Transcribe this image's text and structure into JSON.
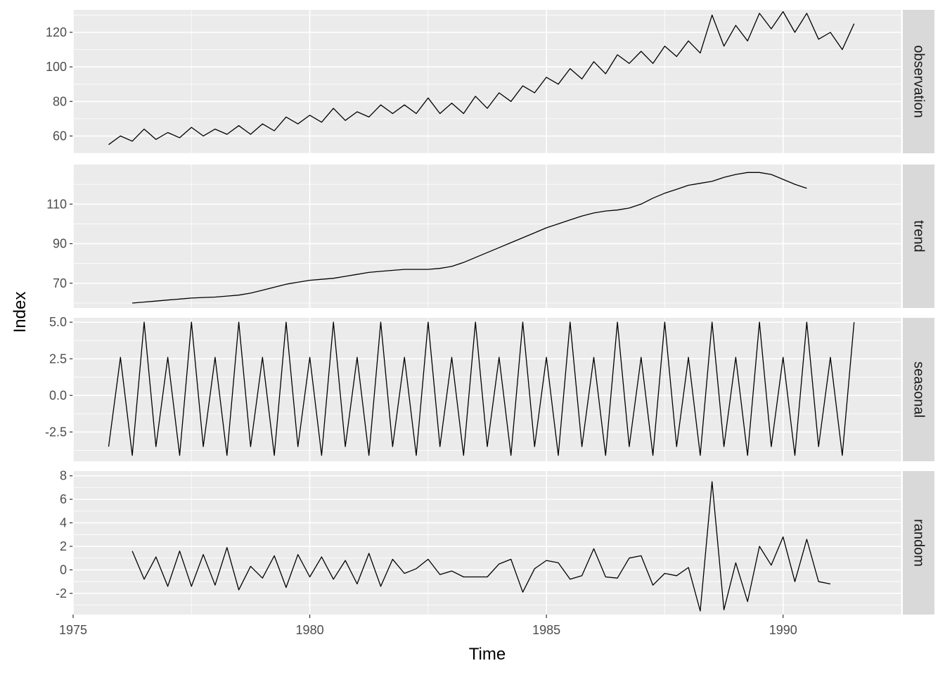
{
  "chart_data": {
    "type": "line",
    "title": "",
    "xlabel": "Time",
    "ylabel": "Index",
    "x_ticks": [
      1975,
      1980,
      1985,
      1990
    ],
    "xlim": [
      1975,
      1992.5
    ],
    "frequency": 4,
    "panel_background": "#ebebeb",
    "strip_background": "#d9d9d9",
    "line_color": "#000000",
    "grid": true,
    "facets": [
      {
        "name": "observation",
        "start": 1975.75,
        "ylim": [
          50,
          133
        ],
        "y_ticks": [
          60,
          80,
          100,
          120
        ],
        "y_tick_labels": [
          "60",
          "80",
          "100",
          "120"
        ],
        "values": [
          55,
          60,
          57,
          64,
          58,
          62,
          59,
          65,
          60,
          64,
          61,
          66,
          61,
          67,
          63,
          71,
          67,
          72,
          68,
          76,
          69,
          74,
          71,
          78,
          73,
          78,
          73,
          82,
          73,
          79,
          73,
          83,
          76,
          85,
          80,
          89,
          85,
          94,
          90,
          99,
          93,
          103,
          96,
          107,
          102,
          109,
          102,
          112,
          106,
          115,
          108,
          130,
          112,
          124,
          115,
          131,
          122,
          132,
          120,
          131,
          116,
          120,
          110,
          125
        ]
      },
      {
        "name": "trend",
        "start": 1976.25,
        "ylim": [
          57.5,
          130
        ],
        "y_ticks": [
          70,
          90,
          110
        ],
        "y_tick_labels": [
          "70",
          "90",
          "110"
        ],
        "values": [
          60,
          60.5,
          61,
          61.5,
          62,
          62.5,
          62.8,
          63,
          63.5,
          64,
          65,
          66.5,
          68,
          69.5,
          70.5,
          71.5,
          72,
          72.5,
          73.5,
          74.5,
          75.5,
          76,
          76.5,
          77,
          77,
          77,
          77.5,
          78.5,
          80.5,
          83,
          85.5,
          88,
          90.5,
          93,
          95.5,
          98,
          100,
          102,
          104,
          105.5,
          106.5,
          107,
          108,
          110,
          113,
          115.5,
          117.5,
          119.5,
          120.5,
          121.5,
          123.5,
          125,
          126,
          126,
          125,
          122.5,
          120,
          118
        ]
      },
      {
        "name": "seasonal",
        "start": 1975.75,
        "ylim": [
          -4.5,
          5.3
        ],
        "y_ticks": [
          -2.5,
          0,
          2.5,
          5
        ],
        "y_tick_labels": [
          "-2.5",
          "0.0",
          "2.5",
          "5.0"
        ],
        "pattern": [
          -3.5,
          2.6,
          -4.1,
          5
        ],
        "count": 64
      },
      {
        "name": "random",
        "start": 1976.25,
        "ylim": [
          -3.8,
          8.4
        ],
        "y_ticks": [
          -2,
          0,
          2,
          4,
          6,
          8
        ],
        "y_tick_labels": [
          "-2",
          "0",
          "2",
          "4",
          "6",
          "8"
        ],
        "values": [
          1.6,
          -0.8,
          1.1,
          -1.4,
          1.6,
          -1.4,
          1.3,
          -1.3,
          1.9,
          -1.7,
          0.3,
          -0.7,
          1.2,
          -1.5,
          1.3,
          -0.6,
          1.1,
          -0.8,
          0.8,
          -1.2,
          1.4,
          -1.4,
          0.9,
          -0.3,
          0.1,
          0.9,
          -0.4,
          -0.1,
          -0.6,
          -0.6,
          -0.6,
          0.5,
          0.9,
          -1.9,
          0.1,
          0.8,
          0.6,
          -0.8,
          -0.5,
          1.8,
          -0.6,
          -0.7,
          1.0,
          1.2,
          -1.3,
          -0.3,
          -0.5,
          0.2,
          -3.5,
          7.5,
          -3.4,
          0.6,
          -2.7,
          2.0,
          0.4,
          2.8,
          -1.0,
          2.6,
          -1.0,
          -1.2
        ]
      }
    ]
  }
}
